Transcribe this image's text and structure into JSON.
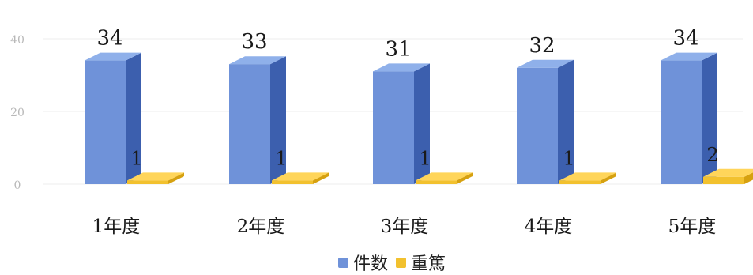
{
  "chart_data": {
    "type": "bar",
    "categories": [
      "1年度",
      "2年度",
      "3年度",
      "4年度",
      "5年度"
    ],
    "series": [
      {
        "name": "件数",
        "values": [
          34,
          33,
          31,
          32,
          34
        ]
      },
      {
        "name": "重篤",
        "values": [
          1,
          1,
          1,
          1,
          2
        ]
      }
    ],
    "y_ticks": [
      "0",
      "20",
      "40"
    ],
    "ylim": [
      0,
      40
    ],
    "grid": true,
    "legend_position": "bottom",
    "colors": {
      "count_front": "#6f92d9",
      "count_side": "#3c5fae",
      "count_top": "#8fb0ea",
      "severe_front": "#f2c12e",
      "severe_side": "#d6a110",
      "severe_top": "#ffd55a"
    }
  }
}
